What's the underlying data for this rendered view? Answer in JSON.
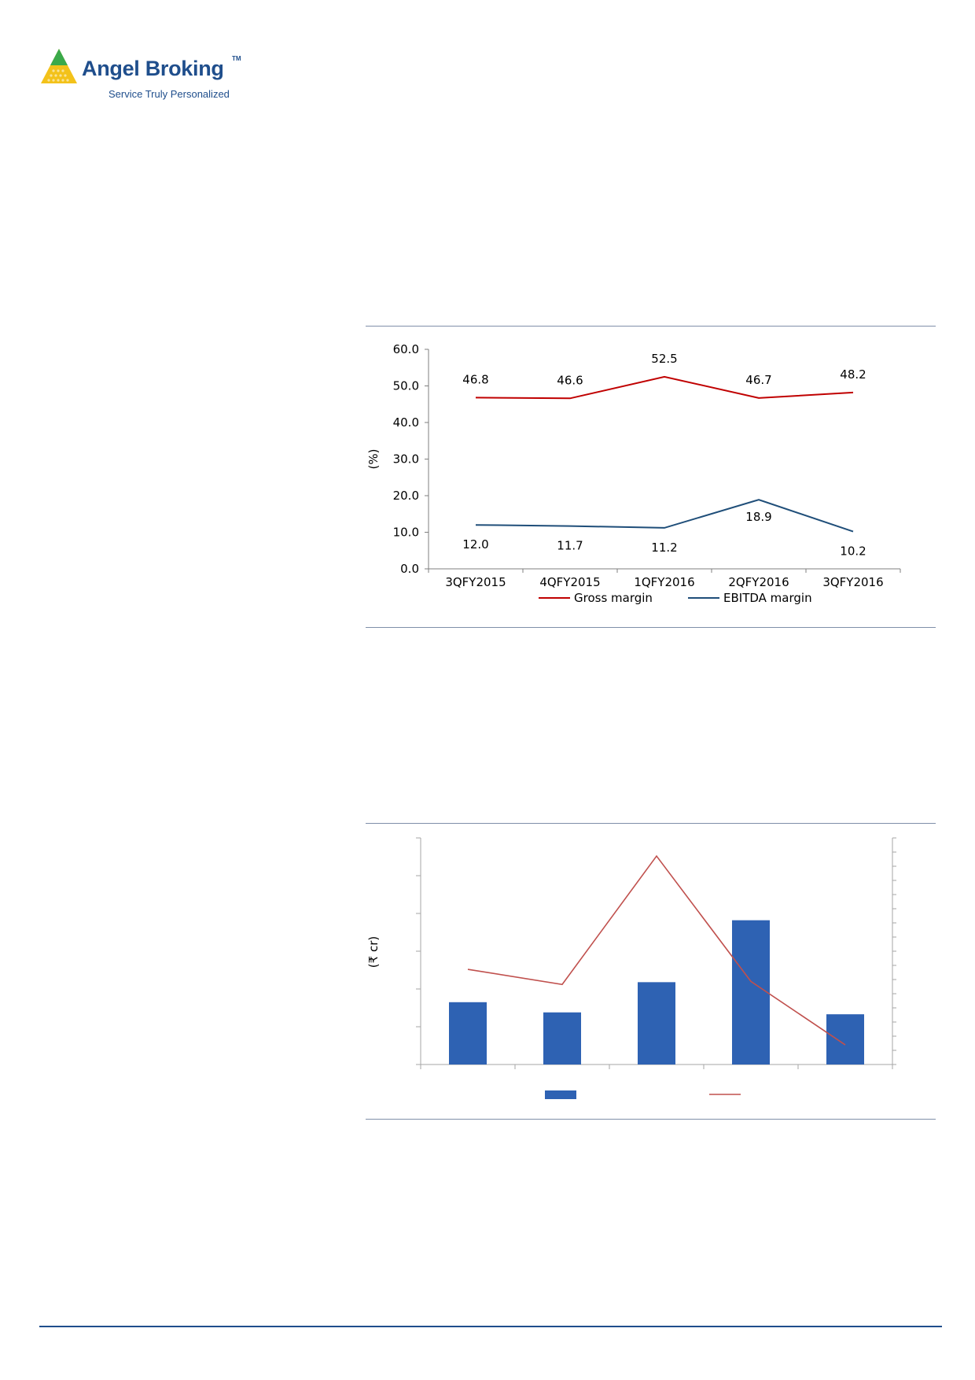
{
  "header": {
    "brand": "Angel Broking",
    "trademark": "TM",
    "tagline": "Service Truly Personalized"
  },
  "chart_data": [
    {
      "type": "line",
      "ylabel": "(%)",
      "ylim": [
        0,
        60
      ],
      "yticks": [
        "0.0",
        "10.0",
        "20.0",
        "30.0",
        "40.0",
        "50.0",
        "60.0"
      ],
      "categories": [
        "3QFY2015",
        "4QFY2015",
        "1QFY2016",
        "2QFY2016",
        "3QFY2016"
      ],
      "series": [
        {
          "name": "Gross margin",
          "color": "#c00000",
          "values": [
            46.8,
            46.6,
            52.5,
            46.7,
            48.2
          ],
          "labels": [
            "46.8",
            "46.6",
            "52.5",
            "46.7",
            "48.2"
          ]
        },
        {
          "name": "EBITDA margin",
          "color": "#1f4e79",
          "values": [
            12.0,
            11.7,
            11.2,
            18.9,
            10.2
          ],
          "labels": [
            "12.0",
            "11.7",
            "11.2",
            "18.9",
            "10.2"
          ]
        }
      ],
      "legend": "bottom",
      "grid": false
    },
    {
      "type": "bar",
      "ylabel": "(₹ cr)",
      "categories": [
        "",
        "",
        "",
        "",
        ""
      ],
      "series": [
        {
          "type": "bar",
          "color": "#2e62b3",
          "values": [
            1.65,
            1.38,
            2.18,
            3.82,
            1.33
          ]
        },
        {
          "type": "line",
          "axis": "secondary",
          "color": "#c0504d",
          "values": [
            3.15,
            2.65,
            6.9,
            2.75,
            0.65
          ]
        }
      ],
      "ylim": [
        0,
        6
      ],
      "y2lim": [
        0,
        7.5
      ],
      "legend": "bottom",
      "grid": false
    }
  ]
}
